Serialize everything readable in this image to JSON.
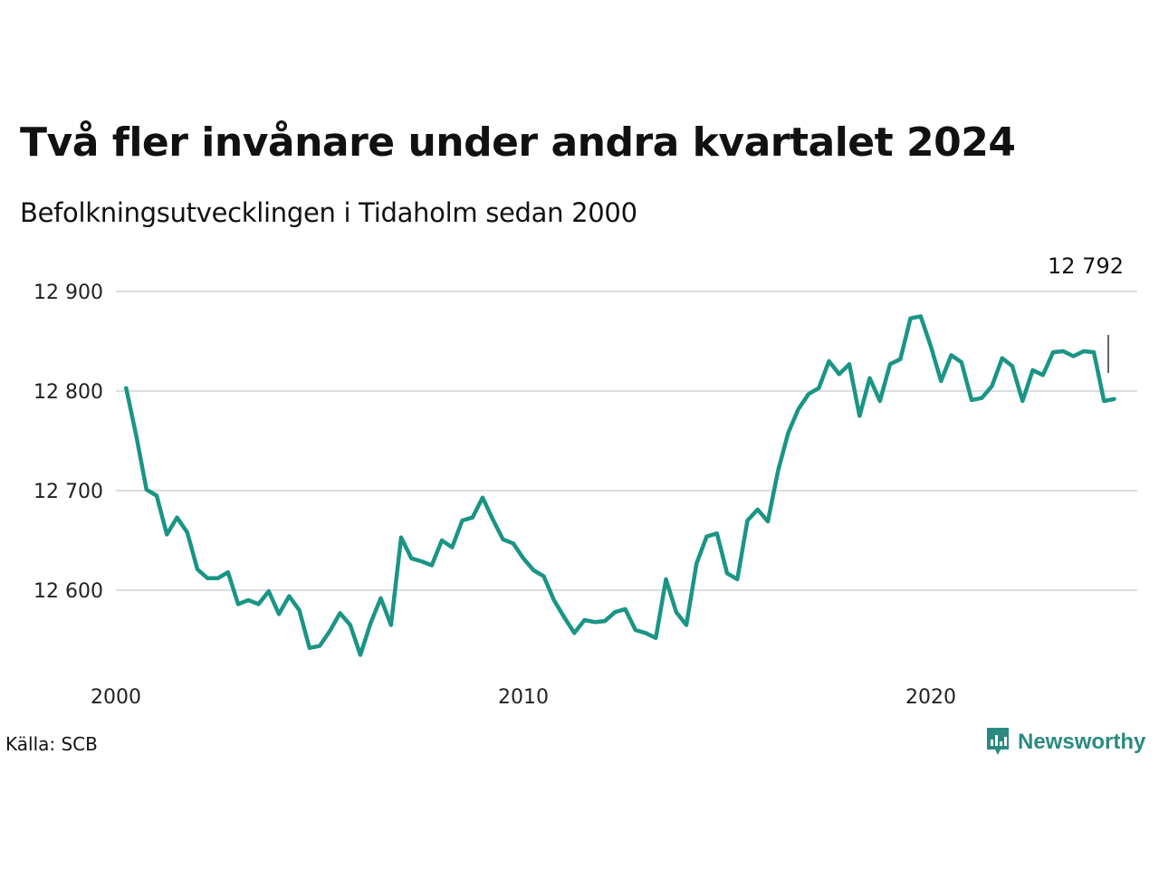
{
  "header": {
    "title": "Två fler invånare under andra kvartalet 2024",
    "subtitle": "Befolkningsutvecklingen i Tidaholm sedan 2000"
  },
  "footer": {
    "source": "Källa: SCB",
    "brand": "Newsworthy"
  },
  "colors": {
    "line": "#1a9585",
    "grid": "#dddddd",
    "brand": "#2a8a80"
  },
  "chart_data": {
    "type": "line",
    "xlabel": "",
    "ylabel": "",
    "x_ticks": [
      2000,
      2010,
      2020
    ],
    "y_ticks": [
      12600,
      12700,
      12800,
      12900
    ],
    "y_tick_labels": [
      "12 600",
      "12 700",
      "12 800",
      "12 900"
    ],
    "x_tick_labels": [
      "2000",
      "2010",
      "2020"
    ],
    "xlim": [
      2000.0,
      2025.0
    ],
    "ylim": [
      12530,
      12920
    ],
    "grid": true,
    "last_value_label": "12 792",
    "x": [
      2000.25,
      2000.5,
      2000.75,
      2001.0,
      2001.25,
      2001.5,
      2001.75,
      2002.0,
      2002.25,
      2002.5,
      2002.75,
      2003.0,
      2003.25,
      2003.5,
      2003.75,
      2004.0,
      2004.25,
      2004.5,
      2004.75,
      2005.0,
      2005.25,
      2005.5,
      2005.75,
      2006.0,
      2006.25,
      2006.5,
      2006.75,
      2007.0,
      2007.25,
      2007.5,
      2007.75,
      2008.0,
      2008.25,
      2008.5,
      2008.75,
      2009.0,
      2009.25,
      2009.5,
      2009.75,
      2010.0,
      2010.25,
      2010.5,
      2010.75,
      2011.0,
      2011.25,
      2011.5,
      2011.75,
      2012.0,
      2012.25,
      2012.5,
      2012.75,
      2013.0,
      2013.25,
      2013.5,
      2013.75,
      2014.0,
      2014.25,
      2014.5,
      2014.75,
      2015.0,
      2015.25,
      2015.5,
      2015.75,
      2016.0,
      2016.25,
      2016.5,
      2016.75,
      2017.0,
      2017.25,
      2017.5,
      2017.75,
      2018.0,
      2018.25,
      2018.5,
      2018.75,
      2019.0,
      2019.25,
      2019.5,
      2019.75,
      2020.0,
      2020.25,
      2020.5,
      2020.75,
      2021.0,
      2021.25,
      2021.5,
      2021.75,
      2022.0,
      2022.25,
      2022.5,
      2022.75,
      2023.0,
      2023.25,
      2023.5,
      2023.75,
      2024.0,
      2024.25,
      2024.5
    ],
    "series": [
      {
        "values": [
          12803,
          12755,
          12701,
          12695,
          12656,
          12673,
          12658,
          12621,
          12612,
          12612,
          12618,
          12586,
          12590,
          12586,
          12599,
          12576,
          12594,
          12580,
          12542,
          12544,
          12559,
          12577,
          12565,
          12535,
          12567,
          12592,
          12565,
          12653,
          12632,
          12629,
          12625,
          12650,
          12643,
          12670,
          12673,
          12693,
          12671,
          12651,
          12647,
          12632,
          12620,
          12614,
          12590,
          12573,
          12557,
          12570,
          12568,
          12569,
          12578,
          12581,
          12560,
          12557,
          12552,
          12611,
          12578,
          12565,
          12627,
          12654,
          12657,
          12617,
          12611,
          12670,
          12681,
          12669,
          12720,
          12758,
          12782,
          12797,
          12803,
          12830,
          12817,
          12827,
          12775,
          12813,
          12790,
          12827,
          12832,
          12873,
          12875,
          12845,
          12810,
          12836,
          12829,
          12791,
          12793,
          12805,
          12833,
          12825,
          12790,
          12821,
          12816,
          12839,
          12840,
          12835,
          12840,
          12839,
          12790,
          12792
        ]
      }
    ]
  }
}
